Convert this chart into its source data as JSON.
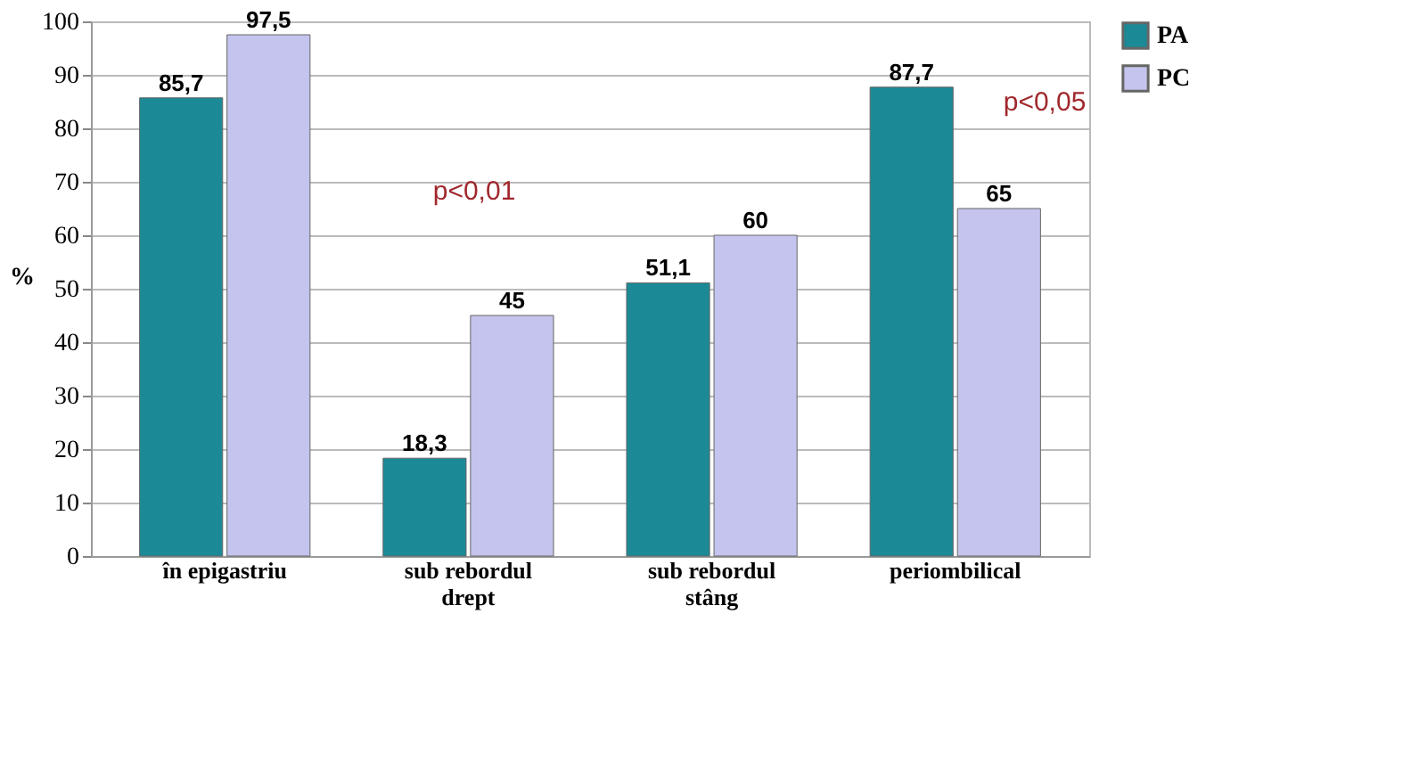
{
  "chart_data": {
    "type": "bar",
    "ylabel": "%",
    "categories": [
      "în epigastriu",
      "sub rebordul drept",
      "sub rebordul stâng",
      "periombilical"
    ],
    "series": [
      {
        "name": "PA",
        "color": "#1b8a96",
        "values": [
          85.7,
          18.3,
          51.1,
          87.7
        ],
        "value_labels": [
          "85,7",
          "18,3",
          "51,1",
          "87,7"
        ]
      },
      {
        "name": "PC",
        "color": "#c4c4ee",
        "values": [
          97.5,
          45,
          60,
          65
        ],
        "value_labels": [
          "97,5",
          "45",
          "60",
          "65"
        ]
      }
    ],
    "ylim": [
      0,
      100
    ],
    "yticks": [
      0,
      10,
      20,
      30,
      40,
      50,
      60,
      70,
      80,
      90,
      100
    ],
    "grid": "y",
    "legend": "right",
    "annotations": [
      "p<0,01",
      "p<0,05"
    ]
  }
}
